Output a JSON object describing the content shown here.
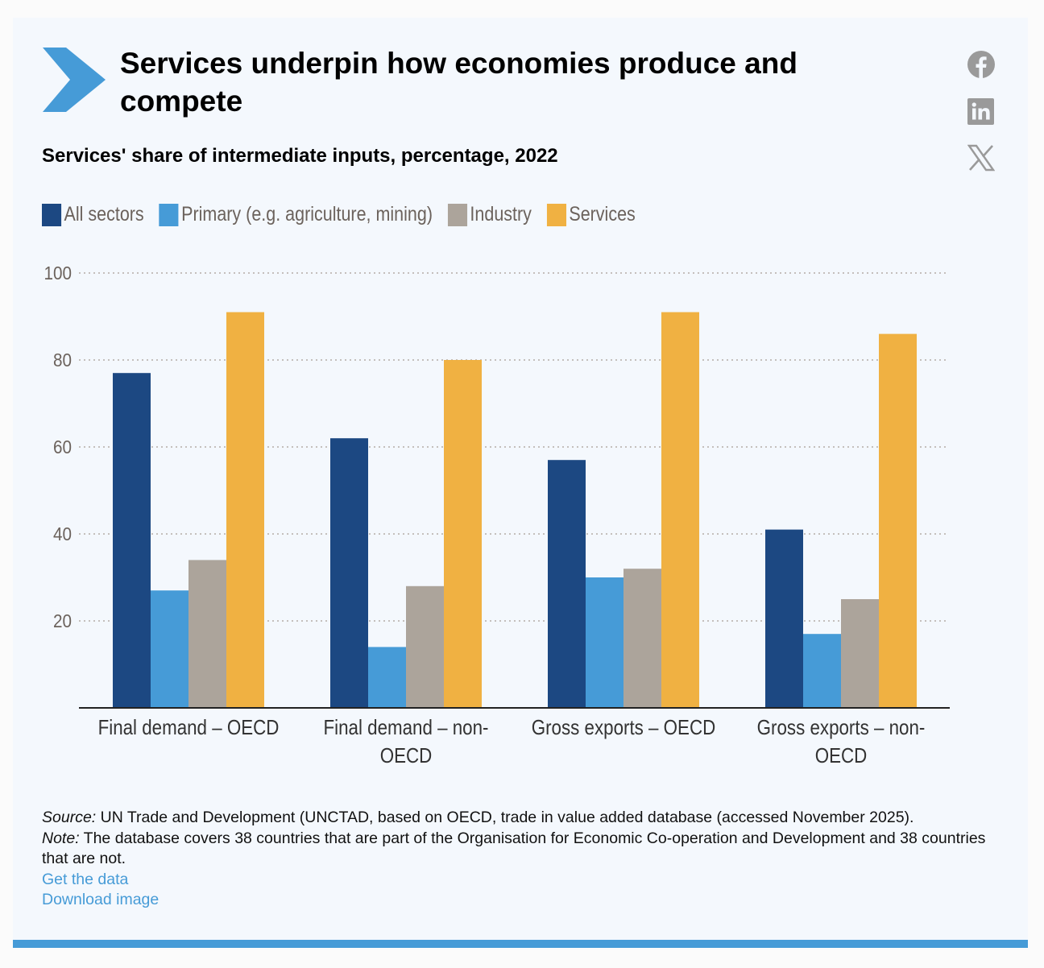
{
  "header": {
    "title": "Services underpin how economies produce and compete",
    "subtitle": "Services' share of intermediate inputs, percentage, 2022",
    "brand_color": "#469bd7"
  },
  "social": [
    {
      "name": "facebook-icon",
      "label": "Facebook"
    },
    {
      "name": "linkedin-icon",
      "label": "LinkedIn"
    },
    {
      "name": "x-icon",
      "label": "X"
    }
  ],
  "chart_data": {
    "type": "bar",
    "title": "Services underpin how economies produce and compete",
    "subtitle": "Services' share of intermediate inputs, percentage, 2022",
    "xlabel": "",
    "ylabel": "",
    "ylim": [
      0,
      100
    ],
    "yticks": [
      20,
      40,
      60,
      80,
      100
    ],
    "grid": true,
    "legend_position": "top-left",
    "categories": [
      [
        "Final demand – OECD"
      ],
      [
        "Final demand – non-",
        "OECD"
      ],
      [
        "Gross exports – OECD"
      ],
      [
        "Gross exports – non-",
        "OECD"
      ]
    ],
    "series": [
      {
        "name": "All sectors",
        "color": "#1c4882",
        "values": [
          77,
          62,
          57,
          41
        ]
      },
      {
        "name": "Primary (e.g. agriculture, mining)",
        "color": "#469bd7",
        "values": [
          27,
          14,
          30,
          17
        ]
      },
      {
        "name": "Industry",
        "color": "#aca49b",
        "values": [
          34,
          28,
          32,
          25
        ]
      },
      {
        "name": "Services",
        "color": "#f0b142",
        "values": [
          91,
          80,
          91,
          86
        ]
      }
    ]
  },
  "footer": {
    "source_label": "Source:",
    "source_text": " UN Trade and Development (UNCTAD, based on OECD, trade in value added database (accessed November 2025).",
    "note_label": "Note:",
    "note_text": " The database covers 38 countries that are part of the Organisation for Economic Co-operation and Development and 38 countries that are not.",
    "get_data_link": "Get the data",
    "download_link": "Download image"
  }
}
